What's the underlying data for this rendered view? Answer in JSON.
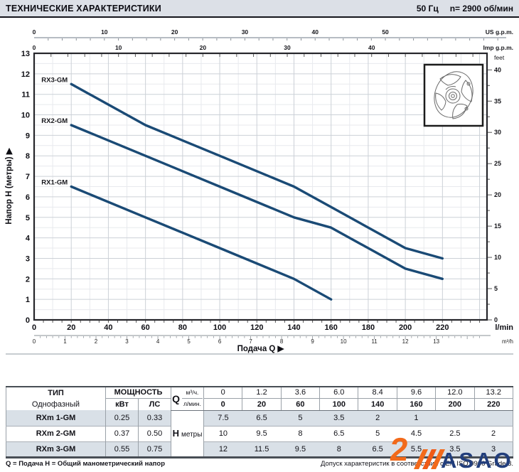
{
  "header": {
    "title": "ТЕХНИЧЕСКИЕ ХАРАКТЕРИСТИКИ",
    "freq": "50 Гц",
    "speed": "n= 2900  об/мин"
  },
  "chart_data": {
    "type": "line",
    "x_unit": "l/min",
    "y_unit": "м",
    "xlabel": "Подача Q  ▶",
    "ylabel": "Напор  H (метры)  ▶",
    "ylim": [
      0,
      13
    ],
    "xlim_lmin": [
      0,
      244
    ],
    "grid": "on",
    "curve_color": "#1a4a75",
    "series": [
      {
        "name": "RX1-GM",
        "x": [
          20,
          60,
          100,
          140,
          160
        ],
        "y": [
          6.5,
          5,
          3.5,
          2,
          1
        ]
      },
      {
        "name": "RX2-GM",
        "x": [
          20,
          60,
          100,
          140,
          160,
          200,
          220
        ],
        "y": [
          9.5,
          8,
          6.5,
          5,
          4.5,
          2.5,
          2
        ]
      },
      {
        "name": "RX3-GM",
        "x": [
          20,
          60,
          100,
          140,
          160,
          200,
          220
        ],
        "y": [
          11.5,
          9.5,
          8,
          6.5,
          5.5,
          3.5,
          3
        ]
      }
    ],
    "axes": {
      "top_us": {
        "unit": "US g.p.m.",
        "labels": [
          0,
          10,
          20,
          30,
          40,
          50
        ]
      },
      "top_imp": {
        "unit": "Imp g.p.m.",
        "labels": [
          0,
          10,
          20,
          30,
          40
        ]
      },
      "left": {
        "labels": [
          0,
          1,
          2,
          3,
          4,
          5,
          6,
          7,
          8,
          9,
          10,
          11,
          12,
          13
        ]
      },
      "right": {
        "unit": "feet",
        "labels": [
          0,
          5,
          10,
          15,
          20,
          25,
          30,
          35,
          40
        ]
      },
      "bottom": {
        "unit": "l/min",
        "labels": [
          0,
          20,
          40,
          60,
          80,
          100,
          120,
          140,
          160,
          180,
          200,
          220
        ]
      },
      "bottom2": {
        "unit": "m³/h",
        "labels": [
          0,
          1,
          2,
          3,
          4,
          5,
          6,
          7,
          8,
          9,
          10,
          11,
          12,
          13
        ]
      }
    }
  },
  "table": {
    "col1_header": "ТИП",
    "col1_sub": "Однофазный",
    "power_header": "МОЩНОСТЬ",
    "power_units": [
      "кВт",
      "ЛС"
    ],
    "q_label": "Q",
    "q_units": [
      "м³/ч.",
      "л/мин."
    ],
    "q_m3h": [
      "0",
      "1.2",
      "3.6",
      "6.0",
      "8.4",
      "9.6",
      "12.0",
      "13.2"
    ],
    "q_lmin": [
      "0",
      "20",
      "60",
      "100",
      "140",
      "160",
      "200",
      "220"
    ],
    "h_label": "H",
    "h_unit": "метры",
    "rows": [
      {
        "type": "RXm 1-GM",
        "kw": "0.25",
        "hp": "0.33",
        "h": [
          "7.5",
          "6.5",
          "5",
          "3.5",
          "2",
          "1",
          "",
          ""
        ]
      },
      {
        "type": "RXm 2-GM",
        "kw": "0.37",
        "hp": "0.50",
        "h": [
          "10",
          "9.5",
          "8",
          "6.5",
          "5",
          "4.5",
          "2.5",
          "2"
        ]
      },
      {
        "type": "RXm 3-GM",
        "kw": "0.55",
        "hp": "0.75",
        "h": [
          "12",
          "11.5",
          "9.5",
          "8",
          "6.5",
          "5.5",
          "3.5",
          "3"
        ]
      }
    ]
  },
  "footer": {
    "left": "Q = Подача   H = Общий манометрический напор",
    "right": "Допуск характеристик в соответствии с EN ISO 9906 Grade 3."
  },
  "logo": {
    "mark": "2",
    "brand": "ASAO",
    "orange": "#f26a1b",
    "navy": "#223e7c"
  }
}
